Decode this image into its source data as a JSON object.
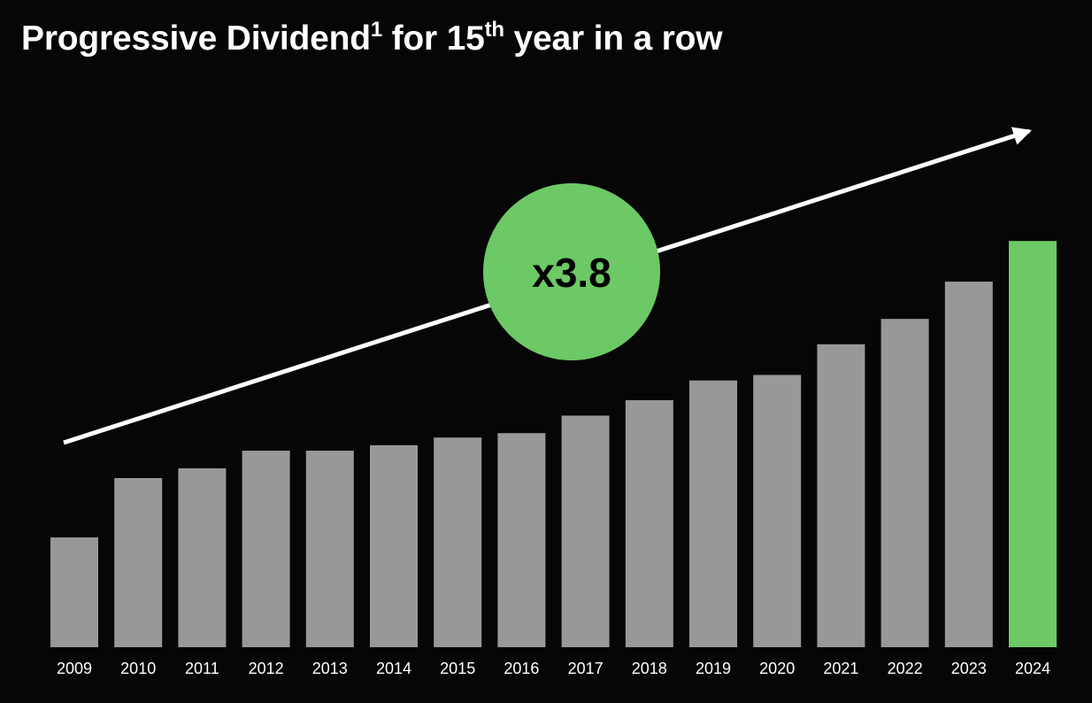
{
  "title": {
    "part1": "Progressive Dividend",
    "sup1": "1",
    "part2": " for 15",
    "sup2": "th",
    "part3": " year in a row"
  },
  "chart_data": {
    "type": "bar",
    "title": "Progressive Dividend1 for 15th year in a row",
    "categories": [
      "2009",
      "2010",
      "2011",
      "2012",
      "2013",
      "2014",
      "2015",
      "2016",
      "2017",
      "2018",
      "2019",
      "2020",
      "2021",
      "2022",
      "2023",
      "2024"
    ],
    "values": [
      1.0,
      1.54,
      1.63,
      1.79,
      1.79,
      1.84,
      1.91,
      1.95,
      2.11,
      2.25,
      2.43,
      2.48,
      2.76,
      2.99,
      3.33,
      3.7
    ],
    "xlabel": "",
    "ylabel": "",
    "y_axis": "none",
    "grid": false,
    "highlight_index": 15,
    "annotation": "x3.8",
    "colors": {
      "bar": "#989898",
      "highlight": "#6cc965",
      "badge": "#6cc965",
      "arrow": "#ffffff",
      "background": "#060606"
    }
  }
}
